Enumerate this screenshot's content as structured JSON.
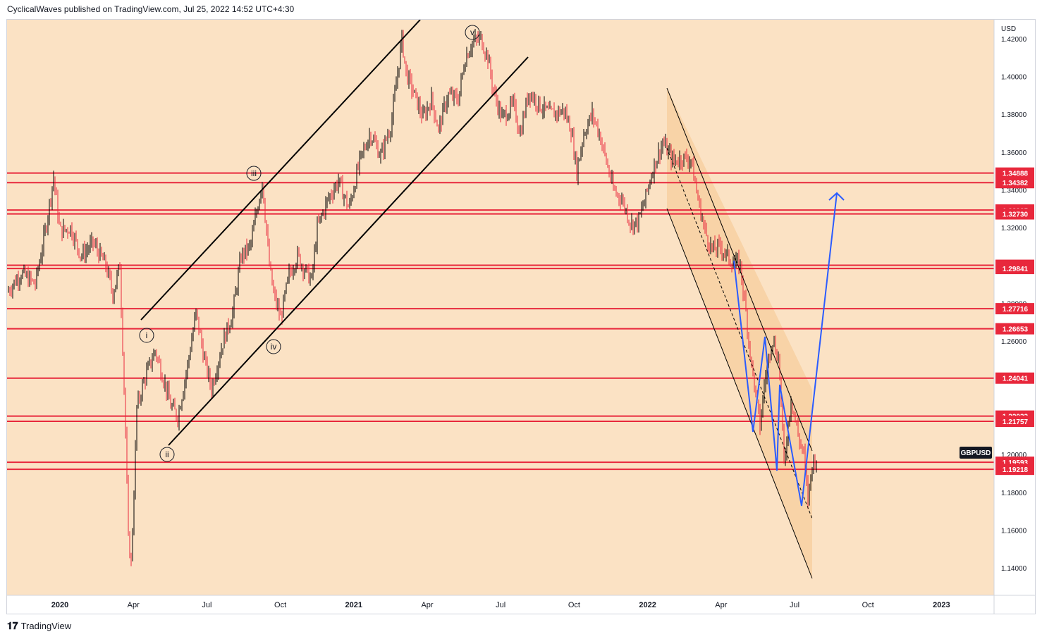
{
  "header": {
    "text": "CyclicalWaves published on TradingView.com, Jul 25, 2022 14:52 UTC+4:30"
  },
  "footer": {
    "logo_icon": "tradingview-logo-icon",
    "brand": "TradingView"
  },
  "colors": {
    "background": "#fbe2c4",
    "level_line": "#e8283c",
    "wave_projection": "#2b5cff",
    "channel": "#000000",
    "candle_up": "#000000",
    "candle_down": "#e8283c",
    "channel_fill": "#f7cfa0"
  },
  "chart_data": {
    "type": "candlestick",
    "symbol": "GBPUSD",
    "currency": "USD",
    "y_range": [
      1.13,
      1.43
    ],
    "y_ticks": [
      "1.42000",
      "1.40000",
      "1.38000",
      "1.36000",
      "1.34000",
      "1.32000",
      "1.30000",
      "1.28000",
      "1.26000",
      "1.24000",
      "1.22000",
      "1.20000",
      "1.18000",
      "1.16000",
      "1.14000"
    ],
    "x_ticks": [
      {
        "label": "2020",
        "bold": true
      },
      {
        "label": "Apr",
        "bold": false
      },
      {
        "label": "Jul",
        "bold": false
      },
      {
        "label": "Oct",
        "bold": false
      },
      {
        "label": "2021",
        "bold": true
      },
      {
        "label": "Apr",
        "bold": false
      },
      {
        "label": "Jul",
        "bold": false
      },
      {
        "label": "Oct",
        "bold": false
      },
      {
        "label": "2022",
        "bold": true
      },
      {
        "label": "Apr",
        "bold": false
      },
      {
        "label": "Jul",
        "bold": false
      },
      {
        "label": "Oct",
        "bold": false
      },
      {
        "label": "2023",
        "bold": true
      }
    ],
    "horizontal_levels": [
      "1.34888",
      "1.34382",
      "1.32935",
      "1.32730",
      "1.30011",
      "1.29841",
      "1.27716",
      "1.26653",
      "1.24041",
      "1.22033",
      "1.21757",
      "1.19593",
      "1.19218"
    ],
    "wave_labels": [
      "i",
      "ii",
      "iii",
      "iv",
      "v"
    ],
    "price_path": [
      [
        0,
        1.286
      ],
      [
        20,
        1.296
      ],
      [
        40,
        1.29
      ],
      [
        55,
        1.32
      ],
      [
        66,
        1.347
      ],
      [
        75,
        1.318
      ],
      [
        90,
        1.32
      ],
      [
        105,
        1.305
      ],
      [
        122,
        1.312
      ],
      [
        140,
        1.3
      ],
      [
        150,
        1.285
      ],
      [
        160,
        1.3
      ],
      [
        167,
        1.225
      ],
      [
        172,
        1.155
      ],
      [
        176,
        1.143
      ],
      [
        180,
        1.18
      ],
      [
        184,
        1.225
      ],
      [
        195,
        1.24
      ],
      [
        210,
        1.255
      ],
      [
        222,
        1.24
      ],
      [
        232,
        1.226
      ],
      [
        242,
        1.22
      ],
      [
        255,
        1.245
      ],
      [
        268,
        1.275
      ],
      [
        280,
        1.25
      ],
      [
        290,
        1.235
      ],
      [
        305,
        1.258
      ],
      [
        320,
        1.275
      ],
      [
        332,
        1.305
      ],
      [
        345,
        1.31
      ],
      [
        362,
        1.345
      ],
      [
        372,
        1.3
      ],
      [
        378,
        1.285
      ],
      [
        388,
        1.272
      ],
      [
        400,
        1.295
      ],
      [
        412,
        1.305
      ],
      [
        422,
        1.298
      ],
      [
        432,
        1.292
      ],
      [
        440,
        1.32
      ],
      [
        455,
        1.335
      ],
      [
        470,
        1.345
      ],
      [
        485,
        1.33
      ],
      [
        500,
        1.355
      ],
      [
        515,
        1.37
      ],
      [
        530,
        1.358
      ],
      [
        545,
        1.375
      ],
      [
        560,
        1.42
      ],
      [
        566,
        1.402
      ],
      [
        578,
        1.39
      ],
      [
        590,
        1.378
      ],
      [
        602,
        1.388
      ],
      [
        612,
        1.372
      ],
      [
        625,
        1.39
      ],
      [
        640,
        1.388
      ],
      [
        650,
        1.41
      ],
      [
        660,
        1.418
      ],
      [
        672,
        1.42
      ],
      [
        682,
        1.41
      ],
      [
        690,
        1.392
      ],
      [
        702,
        1.378
      ],
      [
        718,
        1.385
      ],
      [
        728,
        1.37
      ],
      [
        740,
        1.392
      ],
      [
        755,
        1.385
      ],
      [
        770,
        1.38
      ],
      [
        790,
        1.382
      ],
      [
        800,
        1.372
      ],
      [
        808,
        1.35
      ],
      [
        818,
        1.37
      ],
      [
        830,
        1.38
      ],
      [
        840,
        1.37
      ],
      [
        850,
        1.355
      ],
      [
        860,
        1.34
      ],
      [
        872,
        1.335
      ],
      [
        885,
        1.322
      ],
      [
        895,
        1.323
      ],
      [
        905,
        1.335
      ],
      [
        915,
        1.35
      ],
      [
        930,
        1.365
      ],
      [
        945,
        1.355
      ],
      [
        958,
        1.357
      ],
      [
        970,
        1.356
      ],
      [
        980,
        1.335
      ],
      [
        990,
        1.318
      ],
      [
        1000,
        1.308
      ],
      [
        1012,
        1.31
      ],
      [
        1025,
        1.303
      ],
      [
        1040,
        1.3
      ],
      [
        1048,
        1.275
      ],
      [
        1055,
        1.25
      ],
      [
        1068,
        1.215
      ],
      [
        1075,
        1.24
      ],
      [
        1085,
        1.262
      ],
      [
        1095,
        1.25
      ],
      [
        1102,
        1.195
      ],
      [
        1112,
        1.23
      ],
      [
        1122,
        1.21
      ],
      [
        1130,
        1.2
      ],
      [
        1136,
        1.176
      ],
      [
        1142,
        1.195
      ],
      [
        1150,
        1.2
      ]
    ]
  }
}
